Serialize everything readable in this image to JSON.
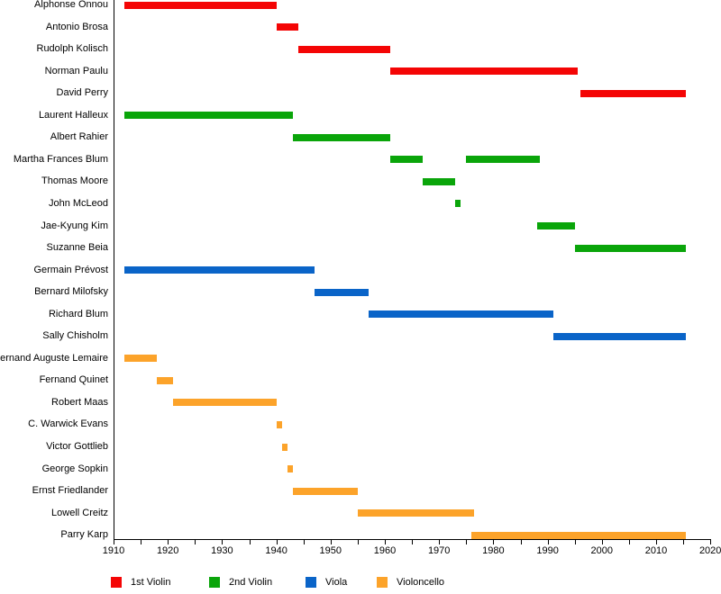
{
  "chart_data": {
    "type": "bar",
    "subtype": "gantt-timeline",
    "title": "",
    "xlabel": "",
    "ylabel": "",
    "x_axis": {
      "min": 1910,
      "max": 2020,
      "minor_tick_step": 5,
      "major_tick_step": 10,
      "tick_labels": [
        "1910",
        "1920",
        "1930",
        "1940",
        "1950",
        "1960",
        "1970",
        "1980",
        "1990",
        "2000",
        "2010",
        "2020"
      ]
    },
    "grid": false,
    "legend_position": "bottom",
    "legend": [
      {
        "label": "1st Violin",
        "color": "#f40505"
      },
      {
        "label": "2nd Violin",
        "color": "#0aa50a"
      },
      {
        "label": "Viola",
        "color": "#0a64c8"
      },
      {
        "label": "Violoncello",
        "color": "#fca32a"
      }
    ],
    "present_end_year": 2015.5,
    "rows": [
      {
        "name": "Alphonse Onnou",
        "role": "1st Violin",
        "spans": [
          [
            1912,
            1940
          ]
        ]
      },
      {
        "name": "Antonio Brosa",
        "role": "1st Violin",
        "spans": [
          [
            1940,
            1944
          ]
        ]
      },
      {
        "name": "Rudolph Kolisch",
        "role": "1st Violin",
        "spans": [
          [
            1944,
            1961
          ]
        ]
      },
      {
        "name": "Norman Paulu",
        "role": "1st Violin",
        "spans": [
          [
            1961,
            1995.5
          ]
        ]
      },
      {
        "name": "David Perry",
        "role": "1st Violin",
        "spans": [
          [
            1996,
            2015.5
          ]
        ]
      },
      {
        "name": "Laurent Halleux",
        "role": "2nd Violin",
        "spans": [
          [
            1912,
            1943
          ]
        ]
      },
      {
        "name": "Albert Rahier",
        "role": "2nd Violin",
        "spans": [
          [
            1943,
            1961
          ]
        ]
      },
      {
        "name": "Martha Frances Blum",
        "role": "2nd Violin",
        "spans": [
          [
            1961,
            1967
          ],
          [
            1975,
            1988.5
          ]
        ]
      },
      {
        "name": "Thomas Moore",
        "role": "2nd Violin",
        "spans": [
          [
            1967,
            1973
          ]
        ]
      },
      {
        "name": "John McLeod",
        "role": "2nd Violin",
        "spans": [
          [
            1973,
            1974
          ]
        ]
      },
      {
        "name": "Jae-Kyung Kim",
        "role": "2nd Violin",
        "spans": [
          [
            1988,
            1995
          ]
        ]
      },
      {
        "name": "Suzanne Beia",
        "role": "2nd Violin",
        "spans": [
          [
            1995,
            2015.5
          ]
        ]
      },
      {
        "name": "Germain Prévost",
        "role": "Viola",
        "spans": [
          [
            1912,
            1947
          ]
        ]
      },
      {
        "name": "Bernard Milofsky",
        "role": "Viola",
        "spans": [
          [
            1947,
            1957
          ]
        ]
      },
      {
        "name": "Richard Blum",
        "role": "Viola",
        "spans": [
          [
            1957,
            1991
          ]
        ]
      },
      {
        "name": "Sally Chisholm",
        "role": "Viola",
        "spans": [
          [
            1991,
            2015.5
          ]
        ]
      },
      {
        "name": "Fernand Auguste Lemaire",
        "role": "Violoncello",
        "spans": [
          [
            1912,
            1918
          ]
        ]
      },
      {
        "name": "Fernand Quinet",
        "role": "Violoncello",
        "spans": [
          [
            1918,
            1921
          ]
        ]
      },
      {
        "name": "Robert Maas",
        "role": "Violoncello",
        "spans": [
          [
            1921,
            1940
          ]
        ]
      },
      {
        "name": "C. Warwick Evans",
        "role": "Violoncello",
        "spans": [
          [
            1940,
            1941
          ]
        ]
      },
      {
        "name": "Victor Gottlieb",
        "role": "Violoncello",
        "spans": [
          [
            1941,
            1942
          ]
        ]
      },
      {
        "name": "George Sopkin",
        "role": "Violoncello",
        "spans": [
          [
            1942,
            1943
          ]
        ]
      },
      {
        "name": "Ernst Friedlander",
        "role": "Violoncello",
        "spans": [
          [
            1943,
            1955
          ]
        ]
      },
      {
        "name": "Lowell Creitz",
        "role": "Violoncello",
        "spans": [
          [
            1955,
            1976.5
          ]
        ]
      },
      {
        "name": "Parry Karp",
        "role": "Violoncello",
        "spans": [
          [
            1976,
            2015.5
          ]
        ]
      }
    ]
  }
}
